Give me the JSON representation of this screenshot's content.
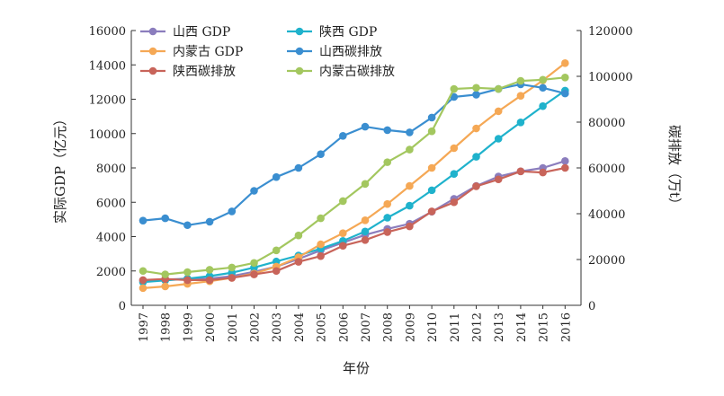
{
  "chart_data": {
    "type": "line",
    "x": [
      "1997",
      "1998",
      "1999",
      "2000",
      "2001",
      "2002",
      "2003",
      "2004",
      "2005",
      "2006",
      "2007",
      "2008",
      "2009",
      "2010",
      "2011",
      "2012",
      "2013",
      "2014",
      "2015",
      "2016"
    ],
    "xlabel": "年份",
    "ylabel_left": "实际GDP（亿元）",
    "ylabel_right": "碳排放（万t）",
    "ylim_left": [
      0,
      16000
    ],
    "ylim_right": [
      0,
      120000
    ],
    "yticks_left": [
      0,
      2000,
      4000,
      6000,
      8000,
      10000,
      12000,
      14000,
      16000
    ],
    "yticks_right": [
      0,
      20000,
      40000,
      60000,
      80000,
      100000,
      120000
    ],
    "grid": false,
    "legend_position": "top-left",
    "series": [
      {
        "name": "山西 GDP",
        "axis": "left",
        "color": "#8b7dbd",
        "values": [
          1450,
          1500,
          1550,
          1560,
          1700,
          1950,
          2250,
          2700,
          3200,
          3650,
          4100,
          4450,
          4750,
          5450,
          6200,
          6950,
          7500,
          7800,
          8000,
          8400
        ]
      },
      {
        "name": "陕西 GDP",
        "axis": "left",
        "color": "#1fb2cc",
        "values": [
          1350,
          1450,
          1550,
          1700,
          1900,
          2200,
          2550,
          2900,
          3300,
          3750,
          4300,
          5100,
          5800,
          6700,
          7650,
          8650,
          9700,
          10650,
          11600,
          12500
        ]
      },
      {
        "name": "内蒙古 GDP",
        "axis": "left",
        "color": "#f5a855",
        "values": [
          1000,
          1100,
          1250,
          1400,
          1600,
          1850,
          2250,
          2800,
          3550,
          4200,
          4950,
          5900,
          6950,
          8000,
          9150,
          10300,
          11300,
          12200,
          13100,
          14100
        ]
      },
      {
        "name": "山西碳排放",
        "axis": "right",
        "color": "#3a8ed0",
        "values": [
          37000,
          38000,
          35000,
          36500,
          41000,
          50000,
          56000,
          60000,
          66000,
          74000,
          78000,
          76500,
          75500,
          82000,
          91000,
          92000,
          94500,
          96500,
          95000,
          92500
        ]
      },
      {
        "name": "陕西碳排放",
        "axis": "right",
        "color": "#c8645a",
        "values": [
          11000,
          11500,
          11000,
          11000,
          12000,
          13500,
          15000,
          19000,
          21500,
          26000,
          28500,
          32000,
          34500,
          41000,
          45000,
          52000,
          55000,
          58500,
          58000,
          60000
        ]
      },
      {
        "name": "内蒙古碳排放",
        "axis": "right",
        "color": "#a3c75f",
        "values": [
          15000,
          13500,
          14500,
          15500,
          16500,
          18500,
          24000,
          30500,
          38000,
          45500,
          53000,
          62500,
          68000,
          76000,
          94500,
          95000,
          94500,
          98000,
          98500,
          99500
        ]
      }
    ]
  }
}
